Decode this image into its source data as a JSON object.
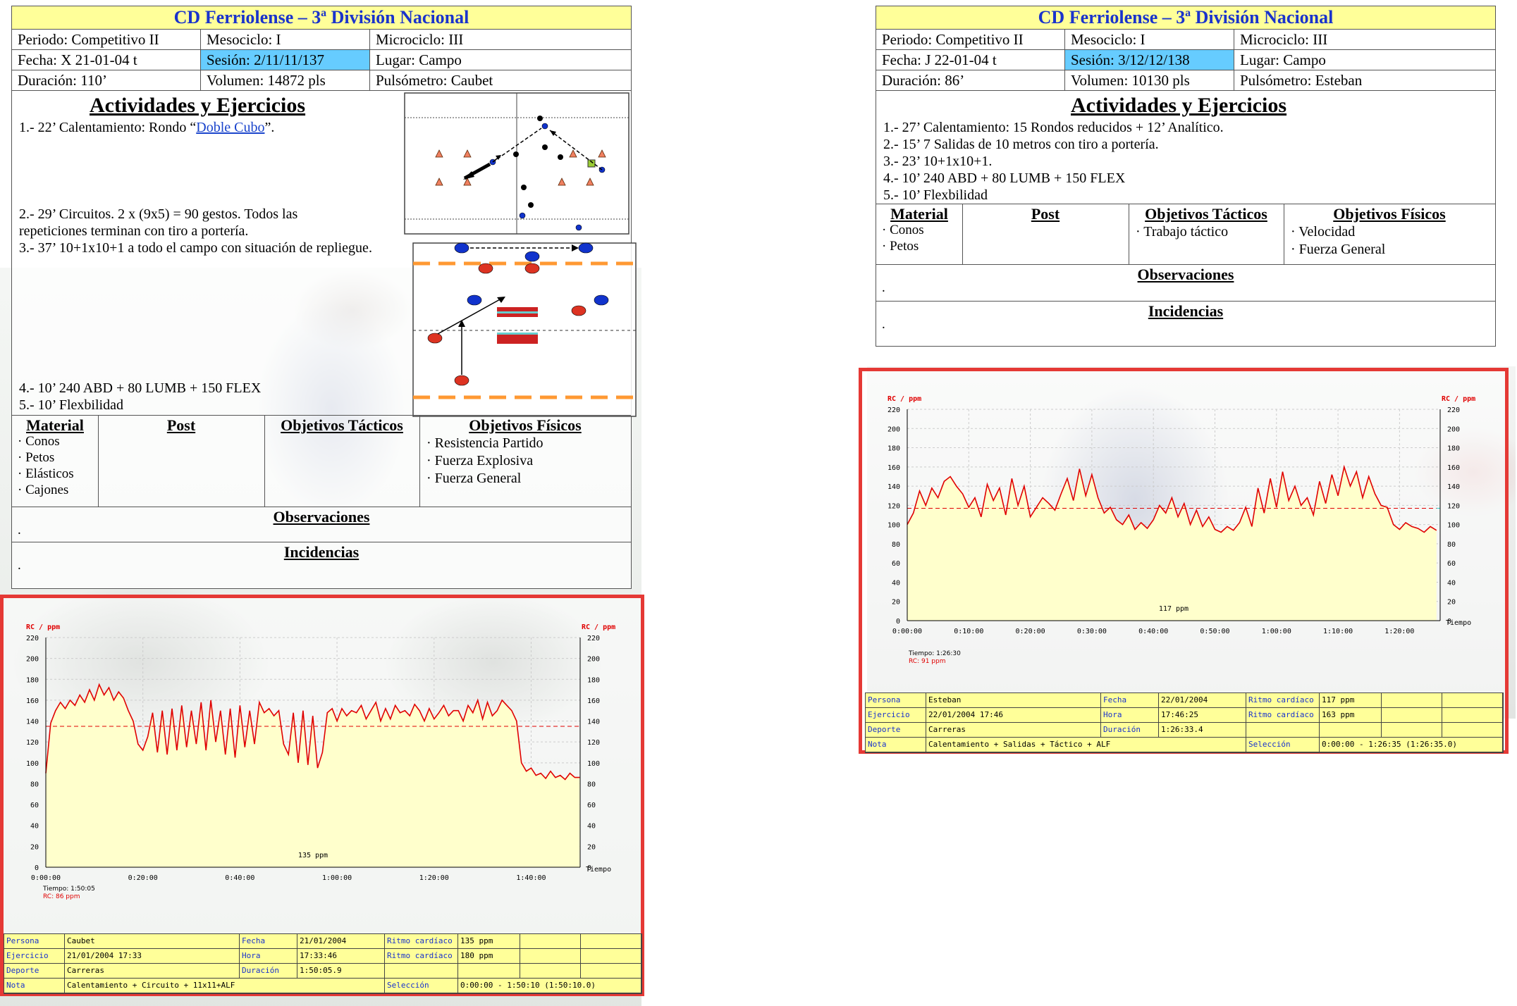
{
  "sessions": [
    {
      "title": "CD Ferriolense –  3ª División Nacional",
      "row1": {
        "periodo": "Periodo: Competitivo II",
        "mesociclo": "Mesociclo: I",
        "microciclo": "Microciclo: III"
      },
      "row2": {
        "fecha": "Fecha: X 21-01-04 t",
        "sesion": "Sesión: 2/11/11/137",
        "lugar": "Lugar: Campo"
      },
      "row3": {
        "duracion": "Duración:  110’",
        "volumen": "Volumen: 14872 pls",
        "pulsometro": "Pulsómetro:  Caubet"
      },
      "activities_title": "Actividades y Ejercicios",
      "activities": {
        "a1_prefix": "1.- 22’ Calentamiento: Rondo “",
        "a1_link": "Doble Cubo",
        "a1_suffix": "”.",
        "a2_line1": "2.- 29’ Circuitos. 2 x (9x5) = 90 gestos. Todos las",
        "a2_line2": "repeticiones terminan con tiro a portería.",
        "a3": "3.- 37’ 10+1x10+1 a todo el campo con situación de repliegue.",
        "a4": "4.- 10’ 240 ABD + 80 LUMB + 150 FLEX",
        "a5": "5.- 10’ Flexbilidad"
      },
      "headers": {
        "material": "Material",
        "post": "Post",
        "tacticos": "Objetivos Tácticos",
        "fisicos": "Objetivos Físicos"
      },
      "material": [
        "· Conos",
        "· Petos",
        "· Elásticos",
        "· Cajones"
      ],
      "tacticos": [],
      "fisicos": [
        "· Resistencia Partido",
        "· Fuerza Explosiva",
        "· Fuerza General"
      ],
      "observaciones_title": "Observaciones",
      "observaciones": ".",
      "incidencias_title": "Incidencias",
      "incidencias": "."
    },
    {
      "title": "CD Ferriolense –  3ª División Nacional",
      "row1": {
        "periodo": "Periodo: Competitivo II",
        "mesociclo": "Mesociclo: I",
        "microciclo": "Microciclo: III"
      },
      "row2": {
        "fecha": "Fecha: J 22-01-04 t",
        "sesion": "Sesión: 3/12/12/138",
        "lugar": "Lugar: Campo"
      },
      "row3": {
        "duracion": "Duración:  86’",
        "volumen": "Volumen: 10130 pls",
        "pulsometro": "Pulsómetro:  Esteban"
      },
      "activities_title": "Actividades y Ejercicios",
      "activities": {
        "a1": "1.- 27’ Calentamiento: 15 Rondos reducidos + 12’ Analítico.",
        "a2": "2.- 15’ 7 Salidas de 10 metros con tiro a portería.",
        "a3": "3.- 23’ 10+1x10+1.",
        "a4": "4.- 10’ 240 ABD + 80 LUMB + 150 FLEX",
        "a5": "5.- 10’ Flexbilidad"
      },
      "headers": {
        "material": "Material",
        "post": "Post",
        "tacticos": "Objetivos Tácticos",
        "fisicos": "Objetivos Físicos"
      },
      "material": [
        "· Conos",
        "· Petos"
      ],
      "tacticos": [
        "· Trabajo táctico"
      ],
      "fisicos": [
        "· Velocidad",
        "· Fuerza General"
      ],
      "observaciones_title": "Observaciones",
      "observaciones": ".",
      "incidencias_title": "Incidencias",
      "incidencias": "."
    }
  ],
  "chart_data": [
    {
      "type": "line",
      "title": "",
      "ylabel": "RC / ppm",
      "xlabel": "Tiempo",
      "ylim": [
        0,
        220
      ],
      "yticks": [
        0,
        20,
        40,
        60,
        80,
        100,
        120,
        140,
        160,
        180,
        200,
        220
      ],
      "xticks": [
        "0:00:00",
        "0:20:00",
        "0:40:00",
        "1:00:00",
        "1:20:00",
        "1:40:00"
      ],
      "xlim_minutes": [
        0,
        110.1
      ],
      "average_label": "135 ppm",
      "average": 135,
      "cursor_time": "Tiempo: 1:50:05",
      "cursor_rc": "RC: 86 ppm",
      "line_color": "#e00000",
      "fill_color": "#ffffcc",
      "series": [
        {
          "x_minutes": [
            0,
            1,
            2,
            3,
            4,
            5,
            6,
            7,
            8,
            9,
            10,
            11,
            12,
            13,
            14,
            15,
            16,
            17,
            18,
            19,
            20,
            21,
            22,
            23,
            24,
            25,
            26,
            27,
            28,
            29,
            30,
            31,
            32,
            33,
            34,
            35,
            36,
            37,
            38,
            39,
            40,
            41,
            42,
            43,
            44,
            45,
            46,
            47,
            48,
            49,
            50,
            51,
            52,
            53,
            54,
            55,
            56,
            57,
            58,
            59,
            60,
            61,
            62,
            63,
            64,
            65,
            66,
            67,
            68,
            69,
            70,
            71,
            72,
            73,
            74,
            75,
            76,
            77,
            78,
            79,
            80,
            81,
            82,
            83,
            84,
            85,
            86,
            87,
            88,
            89,
            90,
            91,
            92,
            93,
            94,
            95,
            96,
            97,
            98,
            99,
            100,
            101,
            102,
            103,
            104,
            105,
            106,
            107,
            108,
            109,
            110
          ],
          "values": [
            90,
            138,
            150,
            158,
            152,
            160,
            155,
            165,
            158,
            170,
            160,
            175,
            165,
            172,
            160,
            168,
            162,
            150,
            140,
            118,
            112,
            125,
            148,
            110,
            150,
            108,
            152,
            112,
            155,
            115,
            150,
            118,
            158,
            112,
            160,
            120,
            150,
            108,
            152,
            105,
            155,
            115,
            150,
            118,
            158,
            148,
            152,
            145,
            150,
            118,
            108,
            148,
            100,
            150,
            98,
            145,
            95,
            110,
            148,
            152,
            140,
            152,
            145,
            150,
            148,
            155,
            142,
            150,
            158,
            140,
            152,
            142,
            155,
            148,
            150,
            145,
            156,
            150,
            140,
            152,
            142,
            148,
            155,
            145,
            150,
            150,
            140,
            155,
            148,
            160,
            142,
            158,
            145,
            150,
            160,
            155,
            150,
            140,
            100,
            92,
            95,
            88,
            90,
            85,
            92,
            86,
            88,
            84,
            90,
            86,
            86
          ]
        }
      ]
    },
    {
      "type": "line",
      "title": "",
      "ylabel": "RC / ppm",
      "xlabel": "Tiempo",
      "ylim": [
        0,
        220
      ],
      "yticks": [
        0,
        20,
        40,
        60,
        80,
        100,
        120,
        140,
        160,
        180,
        200,
        220
      ],
      "xticks": [
        "0:00:00",
        "0:10:00",
        "0:20:00",
        "0:30:00",
        "0:40:00",
        "0:50:00",
        "1:00:00",
        "1:10:00",
        "1:20:00"
      ],
      "xlim_minutes": [
        0,
        86.6
      ],
      "average_label": "117 ppm",
      "average": 117,
      "cursor_time": "Tiempo: 1:26:30",
      "cursor_rc": "RC: 91 ppm",
      "line_color": "#e00000",
      "fill_color": "#ffffcc",
      "series": [
        {
          "x_minutes": [
            0,
            1,
            2,
            3,
            4,
            5,
            6,
            7,
            8,
            9,
            10,
            11,
            12,
            13,
            14,
            15,
            16,
            17,
            18,
            19,
            20,
            21,
            22,
            23,
            24,
            25,
            26,
            27,
            28,
            29,
            30,
            31,
            32,
            33,
            34,
            35,
            36,
            37,
            38,
            39,
            40,
            41,
            42,
            43,
            44,
            45,
            46,
            47,
            48,
            49,
            50,
            51,
            52,
            53,
            54,
            55,
            56,
            57,
            58,
            59,
            60,
            61,
            62,
            63,
            64,
            65,
            66,
            67,
            68,
            69,
            70,
            71,
            72,
            73,
            74,
            75,
            76,
            77,
            78,
            79,
            80,
            81,
            82,
            83,
            84,
            85,
            86
          ],
          "values": [
            100,
            112,
            135,
            120,
            138,
            128,
            145,
            150,
            140,
            132,
            118,
            128,
            108,
            142,
            125,
            138,
            110,
            148,
            120,
            140,
            108,
            118,
            128,
            122,
            115,
            132,
            148,
            125,
            158,
            130,
            152,
            128,
            112,
            118,
            105,
            100,
            110,
            95,
            102,
            96,
            105,
            120,
            112,
            128,
            108,
            122,
            100,
            115,
            98,
            108,
            95,
            92,
            98,
            94,
            102,
            118,
            98,
            138,
            112,
            148,
            118,
            155,
            125,
            140,
            120,
            128,
            110,
            145,
            122,
            152,
            130,
            160,
            140,
            155,
            128,
            150,
            132,
            120,
            118,
            100,
            95,
            102,
            98,
            96,
            92,
            98,
            94
          ]
        }
      ]
    }
  ],
  "info_tables": [
    {
      "persona_k": "Persona",
      "persona_v": "Caubet",
      "fecha_k": "Fecha",
      "fecha_v": "21/01/2004",
      "ritmo1_k": "Ritmo cardíaco pro",
      "ritmo1_v": "135 ppm",
      "ejercicio_k": "Ejercicio",
      "ejercicio_v": "21/01/2004 17:33",
      "hora_k": "Hora",
      "hora_v": "17:33:46",
      "ritmo2_k": "Ritmo cardíaco ma",
      "ritmo2_v": "180 ppm",
      "deporte_k": "Deporte",
      "deporte_v": "Carreras",
      "duracion_k": "Duración",
      "duracion_v": "1:50:05.9",
      "nota_k": "Nota",
      "nota_v": "Calentamiento + Circuito + 11x11+ALF",
      "seleccion_k": "Selección",
      "seleccion_v": "0:00:00 - 1:50:10 (1:50:10.0)"
    },
    {
      "persona_k": "Persona",
      "persona_v": "Esteban",
      "fecha_k": "Fecha",
      "fecha_v": "22/01/2004",
      "ritmo1_k": "Ritmo cardíaco pro",
      "ritmo1_v": "117 ppm",
      "ejercicio_k": "Ejercicio",
      "ejercicio_v": "22/01/2004 17:46",
      "hora_k": "Hora",
      "hora_v": "17:46:25",
      "ritmo2_k": "Ritmo cardíaco ma",
      "ritmo2_v": "163 ppm",
      "deporte_k": "Deporte",
      "deporte_v": "Carreras",
      "duracion_k": "Duración",
      "duracion_v": "1:26:33.4",
      "nota_k": "Nota",
      "nota_v": "Calentamiento + Salidas + Táctico + ALF",
      "seleccion_k": "Selección",
      "seleccion_v": "0:00:00 - 1:26:35 (1:26:35.0)"
    }
  ],
  "colors": {
    "title_bg": "#ffff99",
    "title_text": "#1a33cc",
    "session_highlight": "#66ccff",
    "frame_red": "#e53935",
    "hr_line": "#e00000",
    "team_blue": "#0033cc",
    "team_red": "#cc2200",
    "cone_orange": "#ff9933"
  }
}
